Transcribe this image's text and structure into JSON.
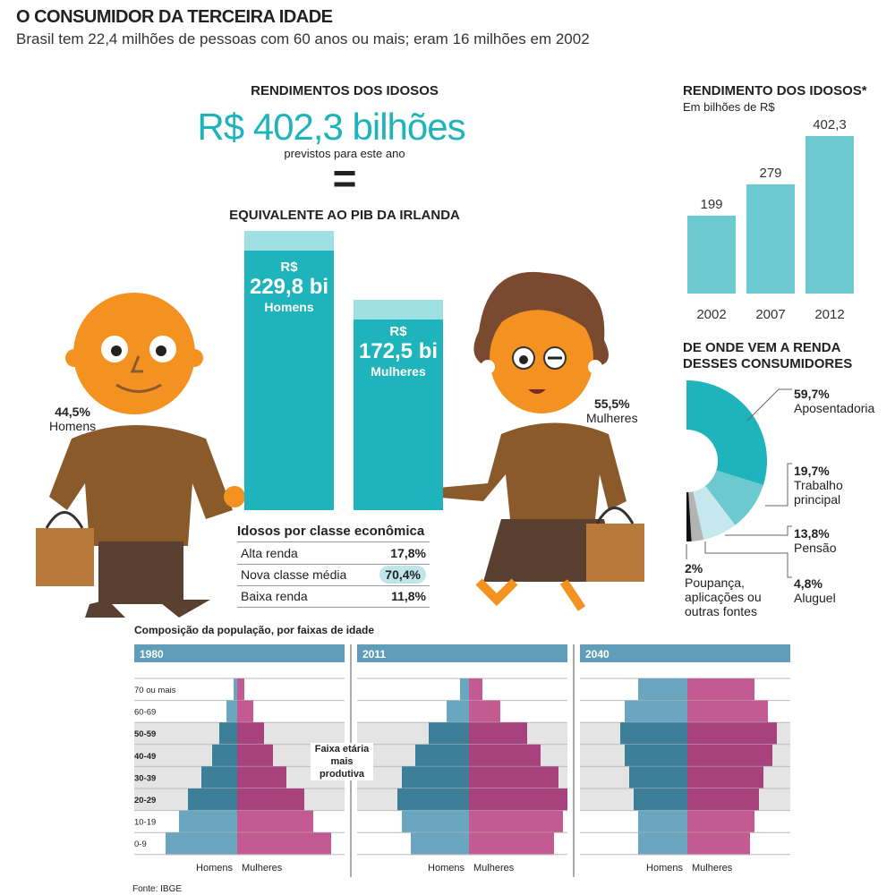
{
  "header": {
    "title": "O CONSUMIDOR DA TERCEIRA IDADE",
    "subtitle": "Brasil tem 22,4 milhões de pessoas com 60 anos ou mais; eram 16 milhões em 2002"
  },
  "rendimentos": {
    "heading": "RENDIMENTOS DOS IDOSOS",
    "total": "R$ 402,3 bilhões",
    "total_sub": "previstos para este ano",
    "equals": "=",
    "equivalent": "EQUIVALENTE AO PIB DA IRLANDA",
    "men": {
      "currency": "R$",
      "value": "229,8 bi",
      "label": "Homens",
      "share": "44,5%",
      "share_label": "Homens"
    },
    "women": {
      "currency": "R$",
      "value": "172,5 bi",
      "label": "Mulheres",
      "share": "55,5%",
      "share_label": "Mulheres"
    }
  },
  "classes": {
    "title": "Idosos por classe econômica",
    "rows": [
      {
        "label": "Alta renda",
        "value": "17,8%"
      },
      {
        "label": "Nova classe média",
        "value": "70,4%"
      },
      {
        "label": "Baixa renda",
        "value": "11,8%"
      }
    ]
  },
  "colors": {
    "teal": "#1fb3bb",
    "bar": "#6cc9cf",
    "men_light": "#6aa6bf",
    "men_dark": "#3d7e99",
    "women_light": "#c45a92",
    "women_dark": "#a8427e",
    "orange": "#f39220",
    "brown": "#8a5a2b"
  },
  "chart_data": [
    {
      "type": "bar",
      "title": "RENDIMENTO DOS IDOSOS*",
      "subtitle": "Em bilhões de R$",
      "categories": [
        "2002",
        "2007",
        "2012"
      ],
      "values": [
        199,
        279,
        402.3
      ],
      "value_labels": [
        "199",
        "279",
        "402,3"
      ],
      "ylim": [
        0,
        402.3
      ]
    },
    {
      "type": "pie",
      "title": "DE ONDE VEM A RENDA DESSES CONSUMIDORES",
      "style": "half-donut",
      "slices": [
        {
          "label": "Aposentadoria",
          "value": 59.7,
          "text": "59,7%",
          "color": "#1fb3bb"
        },
        {
          "label": "Trabalho principal",
          "value": 19.7,
          "text": "19,7%",
          "color": "#6cc9cf"
        },
        {
          "label": "Pensão",
          "value": 13.8,
          "text": "13,8%",
          "color": "#c5e8ec"
        },
        {
          "label": "Aluguel",
          "value": 4.8,
          "text": "4,8%",
          "color": "#b3b3b3"
        },
        {
          "label": "Poupança, aplicações ou outras fontes",
          "value": 2,
          "text": "2%",
          "color": "#111111"
        }
      ]
    },
    {
      "type": "bar",
      "title": "Composição da população, por faixas de idade",
      "subtype": "population-pyramid",
      "age_groups": [
        "70 ou mais",
        "60-69",
        "50-59",
        "40-49",
        "30-39",
        "20-29",
        "10-19",
        "0-9"
      ],
      "highlight": "Faixa etária mais produtiva",
      "highlight_groups": [
        "50-59",
        "40-49",
        "30-39",
        "20-29"
      ],
      "left_label": "Homens",
      "right_label": "Mulheres",
      "panels": [
        {
          "year": "1980",
          "men": [
            4,
            12,
            20,
            28,
            40,
            55,
            65,
            80
          ],
          "women": [
            8,
            18,
            30,
            40,
            55,
            75,
            85,
            105
          ]
        },
        {
          "year": "2011",
          "men": [
            10,
            25,
            45,
            60,
            75,
            80,
            75,
            65
          ],
          "women": [
            15,
            35,
            65,
            80,
            100,
            110,
            105,
            95
          ]
        },
        {
          "year": "2040",
          "men": [
            55,
            70,
            75,
            70,
            65,
            60,
            55,
            55
          ],
          "women": [
            75,
            90,
            100,
            95,
            85,
            80,
            75,
            70
          ]
        }
      ],
      "source": "Fonte: IBGE"
    }
  ]
}
